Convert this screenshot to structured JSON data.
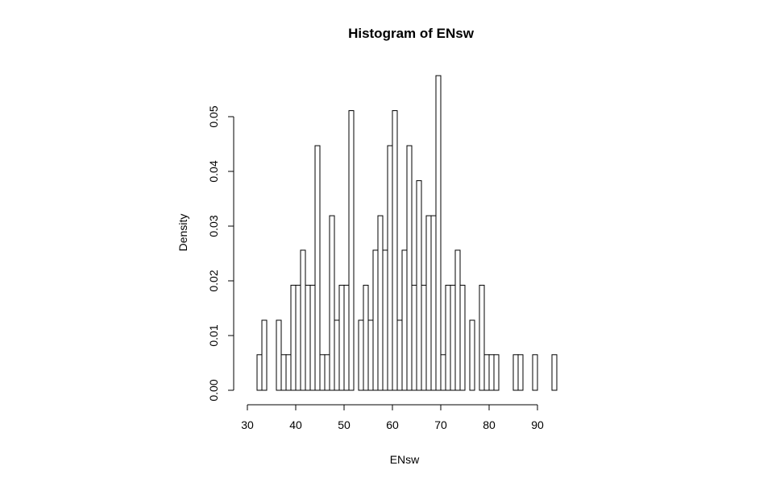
{
  "chart_data": {
    "type": "bar",
    "title": "Histogram of ENsw",
    "xlabel": "ENsw",
    "ylabel": "Density",
    "xlim": [
      30,
      95
    ],
    "ylim": [
      0,
      0.057
    ],
    "x_ticks": [
      30,
      40,
      50,
      60,
      70,
      80,
      90
    ],
    "x_tick_labels": [
      "30",
      "40",
      "50",
      "60",
      "70",
      "80",
      "90"
    ],
    "y_ticks": [
      0.0,
      0.01,
      0.02,
      0.03,
      0.04,
      0.05
    ],
    "y_tick_labels": [
      "0.00",
      "0.01",
      "0.02",
      "0.03",
      "0.04",
      "0.05"
    ],
    "grid": false,
    "bin_width": 1,
    "bin_starts": [
      32,
      33,
      34,
      35,
      36,
      37,
      38,
      39,
      40,
      41,
      42,
      43,
      44,
      45,
      46,
      47,
      48,
      49,
      50,
      51,
      52,
      53,
      54,
      55,
      56,
      57,
      58,
      59,
      60,
      61,
      62,
      63,
      64,
      65,
      66,
      67,
      68,
      69,
      70,
      71,
      72,
      73,
      74,
      75,
      76,
      77,
      78,
      79,
      80,
      81,
      82,
      83,
      84,
      85,
      86,
      87,
      88,
      89,
      90,
      91,
      92,
      93
    ],
    "values": [
      0.0065,
      0.0128,
      0,
      0,
      0.0128,
      0.0065,
      0.0065,
      0.0192,
      0.0192,
      0.0256,
      0.0192,
      0.0192,
      0.0447,
      0.0065,
      0.0065,
      0.0319,
      0.0128,
      0.0192,
      0.0192,
      0.0511,
      0,
      0.0128,
      0.0192,
      0.0128,
      0.0256,
      0.0319,
      0.0256,
      0.0447,
      0.0511,
      0.0128,
      0.0256,
      0.0447,
      0.0192,
      0.0383,
      0.0192,
      0.0319,
      0.0319,
      0.0575,
      0.0065,
      0.0192,
      0.0192,
      0.0256,
      0.0192,
      0,
      0.0128,
      0,
      0.0192,
      0.0065,
      0.0065,
      0.0065,
      0,
      0,
      0,
      0.0065,
      0.0065,
      0,
      0,
      0.0065,
      0,
      0,
      0,
      0.0065
    ]
  }
}
